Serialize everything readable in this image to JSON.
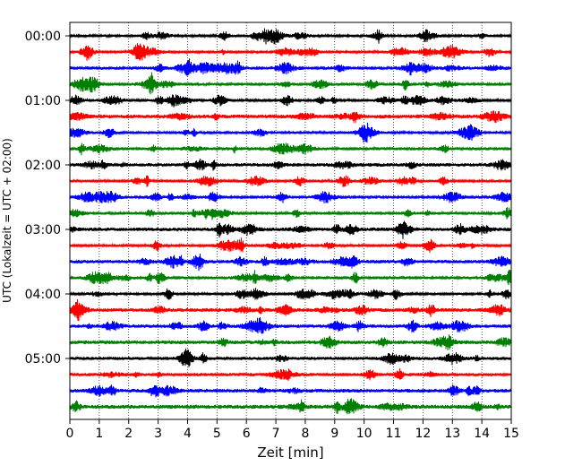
{
  "chart_data": {
    "type": "line",
    "title": "",
    "xlabel": "Zeit  [min]",
    "ylabel": "UTC (Lokalzeit = UTC + 02:00)",
    "xlim": [
      0,
      15
    ],
    "x_ticks": [
      0,
      1,
      2,
      3,
      4,
      5,
      6,
      7,
      8,
      9,
      10,
      11,
      12,
      13,
      14,
      15
    ],
    "y_tick_labels": [
      "00:00",
      "01:00",
      "02:00",
      "03:00",
      "04:00",
      "05:00"
    ],
    "y_tick_rows": [
      0,
      4,
      8,
      12,
      16,
      20
    ],
    "grid": "vertical-dotted",
    "row_interval_minutes": 15,
    "rows": [
      {
        "start": "00:00",
        "color": "#000000"
      },
      {
        "start": "00:15",
        "color": "#ff0000"
      },
      {
        "start": "00:30",
        "color": "#0000ff"
      },
      {
        "start": "00:45",
        "color": "#008000"
      },
      {
        "start": "01:00",
        "color": "#000000"
      },
      {
        "start": "01:15",
        "color": "#ff0000"
      },
      {
        "start": "01:30",
        "color": "#0000ff"
      },
      {
        "start": "01:45",
        "color": "#008000"
      },
      {
        "start": "02:00",
        "color": "#000000"
      },
      {
        "start": "02:15",
        "color": "#ff0000"
      },
      {
        "start": "02:30",
        "color": "#0000ff"
      },
      {
        "start": "02:45",
        "color": "#008000"
      },
      {
        "start": "03:00",
        "color": "#000000"
      },
      {
        "start": "03:15",
        "color": "#ff0000"
      },
      {
        "start": "03:30",
        "color": "#0000ff"
      },
      {
        "start": "03:45",
        "color": "#008000"
      },
      {
        "start": "04:00",
        "color": "#000000"
      },
      {
        "start": "04:15",
        "color": "#ff0000"
      },
      {
        "start": "04:30",
        "color": "#0000ff"
      },
      {
        "start": "04:45",
        "color": "#008000"
      },
      {
        "start": "05:00",
        "color": "#000000"
      },
      {
        "start": "05:15",
        "color": "#ff0000"
      },
      {
        "start": "05:30",
        "color": "#0000ff"
      },
      {
        "start": "05:45",
        "color": "#008000"
      }
    ]
  }
}
